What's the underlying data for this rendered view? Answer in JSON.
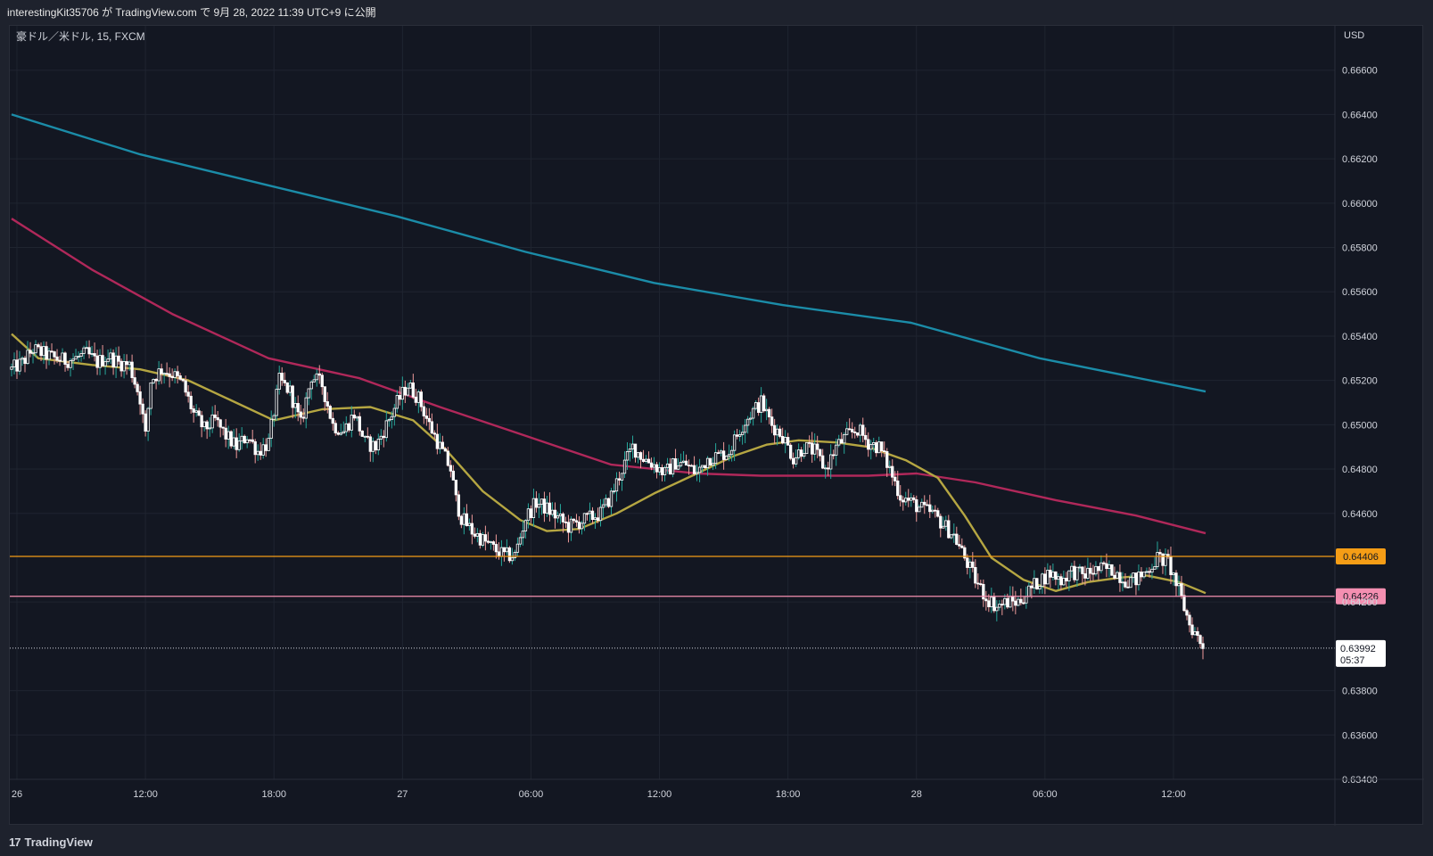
{
  "header": {
    "publish_text": "interestingKit35706 が TradingView.com で 9月 28, 2022 11:39 UTC+9 に公開"
  },
  "symbol": {
    "label": "豪ドル／米ドル, 15, FXCM"
  },
  "brand": {
    "logo_text": "TradingView",
    "logo_mark": "17"
  },
  "colors": {
    "background": "#131722",
    "grid": "#1f2430",
    "up_candle": "#ffffff",
    "down_candle": "#ffffff",
    "wick_up": "#26a69a",
    "wick_down": "#ef9a9a",
    "ma_short": "#b5a642",
    "ma_mid": "#b0285a",
    "ma_long": "#1b8ca8",
    "level_orange": "#f59d16",
    "level_pink": "#f48fb1"
  },
  "chart_data": {
    "type": "candlestick",
    "title": "豪ドル／米ドル, 15, FXCM",
    "currency_label": "USD",
    "ylim": [
      0.634,
      0.668
    ],
    "y_ticks": [
      "0.66600",
      "0.66400",
      "0.66200",
      "0.66000",
      "0.65800",
      "0.65600",
      "0.65400",
      "0.65200",
      "0.65000",
      "0.64800",
      "0.64600",
      "0.64200",
      "0.63800",
      "0.63600",
      "0.63400"
    ],
    "x_ticks": [
      {
        "label": "26",
        "i": 2
      },
      {
        "label": "12:00",
        "i": 50
      },
      {
        "label": "18:00",
        "i": 98
      },
      {
        "label": "27",
        "i": 146
      },
      {
        "label": "06:00",
        "i": 194
      },
      {
        "label": "12:00",
        "i": 242
      },
      {
        "label": "18:00",
        "i": 290
      },
      {
        "label": "28",
        "i": 338
      },
      {
        "label": "06:00",
        "i": 386
      },
      {
        "label": "12:00",
        "i": 434
      }
    ],
    "bar_count": 448,
    "horizontal_levels": [
      {
        "value": 0.64406,
        "label": "0.64406",
        "color": "#f59d16"
      },
      {
        "value": 0.64226,
        "label": "0.64226",
        "color": "#f48fb1"
      }
    ],
    "last_price": {
      "value": 0.63992,
      "label": "0.63992",
      "countdown": "05:37"
    },
    "moving_averages": [
      {
        "color": "#1b8ca8",
        "points": [
          [
            0,
            0.664
          ],
          [
            48,
            0.6622
          ],
          [
            96,
            0.6608
          ],
          [
            144,
            0.6594
          ],
          [
            192,
            0.6578
          ],
          [
            240,
            0.6564
          ],
          [
            288,
            0.6554
          ],
          [
            336,
            0.6546
          ],
          [
            384,
            0.653
          ],
          [
            446,
            0.6515
          ]
        ]
      },
      {
        "color": "#b0285a",
        "points": [
          [
            0,
            0.6593
          ],
          [
            30,
            0.657
          ],
          [
            60,
            0.655
          ],
          [
            96,
            0.653
          ],
          [
            130,
            0.6521
          ],
          [
            160,
            0.6508
          ],
          [
            192,
            0.6495
          ],
          [
            224,
            0.6482
          ],
          [
            256,
            0.6478
          ],
          [
            280,
            0.6477
          ],
          [
            300,
            0.6477
          ],
          [
            320,
            0.6477
          ],
          [
            338,
            0.6478
          ],
          [
            360,
            0.6474
          ],
          [
            390,
            0.6466
          ],
          [
            420,
            0.6459
          ],
          [
            446,
            0.6451
          ]
        ]
      },
      {
        "color": "#b5a642",
        "points": [
          [
            0,
            0.6541
          ],
          [
            10,
            0.653
          ],
          [
            30,
            0.6527
          ],
          [
            48,
            0.6525
          ],
          [
            66,
            0.652
          ],
          [
            82,
            0.6511
          ],
          [
            98,
            0.6502
          ],
          [
            116,
            0.6507
          ],
          [
            134,
            0.6508
          ],
          [
            150,
            0.6502
          ],
          [
            162,
            0.6489
          ],
          [
            176,
            0.647
          ],
          [
            190,
            0.6457
          ],
          [
            200,
            0.6452
          ],
          [
            212,
            0.6453
          ],
          [
            226,
            0.646
          ],
          [
            240,
            0.6469
          ],
          [
            256,
            0.6478
          ],
          [
            270,
            0.6486
          ],
          [
            282,
            0.6491
          ],
          [
            294,
            0.6493
          ],
          [
            308,
            0.6492
          ],
          [
            320,
            0.649
          ],
          [
            334,
            0.6484
          ],
          [
            346,
            0.6476
          ],
          [
            356,
            0.6459
          ],
          [
            366,
            0.644
          ],
          [
            378,
            0.643
          ],
          [
            390,
            0.6425
          ],
          [
            402,
            0.6429
          ],
          [
            414,
            0.6431
          ],
          [
            424,
            0.6432
          ],
          [
            436,
            0.6429
          ],
          [
            446,
            0.6424
          ]
        ]
      }
    ],
    "close_path": [
      [
        0,
        0.6525
      ],
      [
        4,
        0.6528
      ],
      [
        8,
        0.6534
      ],
      [
        12,
        0.6532
      ],
      [
        16,
        0.653
      ],
      [
        20,
        0.6529
      ],
      [
        24,
        0.653
      ],
      [
        28,
        0.6532
      ],
      [
        32,
        0.6528
      ],
      [
        36,
        0.6531
      ],
      [
        40,
        0.6528
      ],
      [
        44,
        0.6527
      ],
      [
        48,
        0.6512
      ],
      [
        50,
        0.6495
      ],
      [
        52,
        0.652
      ],
      [
        56,
        0.6525
      ],
      [
        60,
        0.6523
      ],
      [
        64,
        0.6518
      ],
      [
        68,
        0.6505
      ],
      [
        72,
        0.6498
      ],
      [
        76,
        0.6502
      ],
      [
        80,
        0.6495
      ],
      [
        84,
        0.649
      ],
      [
        88,
        0.6495
      ],
      [
        92,
        0.6488
      ],
      [
        96,
        0.6492
      ],
      [
        100,
        0.652
      ],
      [
        104,
        0.6515
      ],
      [
        108,
        0.65
      ],
      [
        112,
        0.6522
      ],
      [
        116,
        0.6518
      ],
      [
        120,
        0.65
      ],
      [
        124,
        0.6497
      ],
      [
        128,
        0.6505
      ],
      [
        132,
        0.6492
      ],
      [
        136,
        0.649
      ],
      [
        140,
        0.65
      ],
      [
        144,
        0.651
      ],
      [
        148,
        0.6518
      ],
      [
        152,
        0.6512
      ],
      [
        156,
        0.65
      ],
      [
        160,
        0.649
      ],
      [
        164,
        0.648
      ],
      [
        166,
        0.6466
      ],
      [
        168,
        0.6458
      ],
      [
        172,
        0.6452
      ],
      [
        176,
        0.6448
      ],
      [
        180,
        0.6444
      ],
      [
        184,
        0.6441
      ],
      [
        188,
        0.6441
      ],
      [
        192,
        0.6458
      ],
      [
        196,
        0.6465
      ],
      [
        200,
        0.6462
      ],
      [
        204,
        0.6458
      ],
      [
        208,
        0.6454
      ],
      [
        212,
        0.6456
      ],
      [
        216,
        0.6458
      ],
      [
        220,
        0.646
      ],
      [
        224,
        0.6468
      ],
      [
        228,
        0.648
      ],
      [
        232,
        0.649
      ],
      [
        236,
        0.6485
      ],
      [
        240,
        0.6482
      ],
      [
        244,
        0.6478
      ],
      [
        248,
        0.6483
      ],
      [
        252,
        0.6482
      ],
      [
        256,
        0.6478
      ],
      [
        260,
        0.6485
      ],
      [
        264,
        0.6486
      ],
      [
        268,
        0.6488
      ],
      [
        272,
        0.6498
      ],
      [
        276,
        0.6505
      ],
      [
        280,
        0.651
      ],
      [
        284,
        0.65
      ],
      [
        288,
        0.6495
      ],
      [
        292,
        0.6485
      ],
      [
        296,
        0.649
      ],
      [
        300,
        0.6488
      ],
      [
        304,
        0.648
      ],
      [
        308,
        0.649
      ],
      [
        312,
        0.6495
      ],
      [
        316,
        0.6498
      ],
      [
        320,
        0.6492
      ],
      [
        324,
        0.649
      ],
      [
        328,
        0.648
      ],
      [
        332,
        0.6468
      ],
      [
        336,
        0.6465
      ],
      [
        340,
        0.6462
      ],
      [
        344,
        0.646
      ],
      [
        348,
        0.6455
      ],
      [
        352,
        0.645
      ],
      [
        356,
        0.644
      ],
      [
        360,
        0.643
      ],
      [
        364,
        0.6422
      ],
      [
        368,
        0.6418
      ],
      [
        372,
        0.642
      ],
      [
        376,
        0.642
      ],
      [
        380,
        0.6425
      ],
      [
        384,
        0.643
      ],
      [
        388,
        0.6433
      ],
      [
        392,
        0.643
      ],
      [
        396,
        0.6434
      ],
      [
        400,
        0.6432
      ],
      [
        404,
        0.6434
      ],
      [
        408,
        0.6435
      ],
      [
        412,
        0.6434
      ],
      [
        416,
        0.643
      ],
      [
        420,
        0.643
      ],
      [
        424,
        0.6434
      ],
      [
        428,
        0.644
      ],
      [
        432,
        0.6438
      ],
      [
        436,
        0.6425
      ],
      [
        440,
        0.641
      ],
      [
        444,
        0.6402
      ],
      [
        446,
        0.6399
      ]
    ]
  }
}
